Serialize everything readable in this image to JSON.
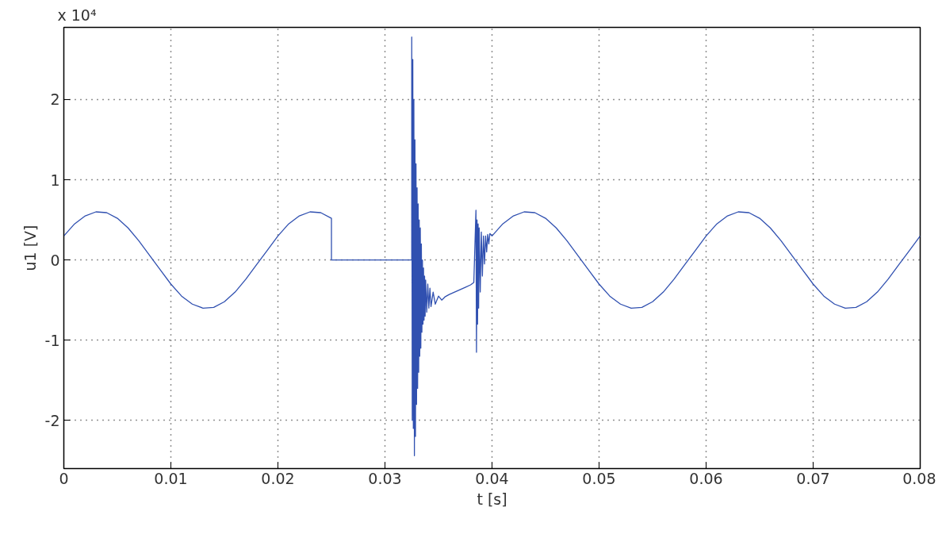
{
  "chart_data": {
    "type": "line",
    "xlabel": "t [s]",
    "ylabel": "u1 [V]",
    "annotations": [
      "x 10⁴"
    ],
    "x": [
      0,
      0.001,
      0.002,
      0.003,
      0.004,
      0.005,
      0.006,
      0.007,
      0.008,
      0.009,
      0.01,
      0.011,
      0.012,
      0.013,
      0.014,
      0.015,
      0.016,
      0.017,
      0.018,
      0.019,
      0.02,
      0.021,
      0.022,
      0.023,
      0.024,
      0.025,
      0.025,
      0.0325,
      0.0325,
      0.03255,
      0.0326,
      0.03265,
      0.0327,
      0.03275,
      0.0328,
      0.03285,
      0.0329,
      0.03295,
      0.033,
      0.03305,
      0.0331,
      0.03315,
      0.0332,
      0.03325,
      0.0333,
      0.03335,
      0.0334,
      0.03345,
      0.0335,
      0.03355,
      0.0336,
      0.03365,
      0.0337,
      0.03375,
      0.0338,
      0.0339,
      0.034,
      0.0341,
      0.0342,
      0.0343,
      0.0345,
      0.0347,
      0.035,
      0.0353,
      0.0356,
      0.036,
      0.0365,
      0.037,
      0.0375,
      0.038,
      0.0383,
      0.0385,
      0.03855,
      0.0386,
      0.03865,
      0.0387,
      0.03875,
      0.0388,
      0.0389,
      0.039,
      0.0391,
      0.0392,
      0.0393,
      0.0394,
      0.0395,
      0.0396,
      0.0397,
      0.0398,
      0.04,
      0.041,
      0.042,
      0.043,
      0.044,
      0.045,
      0.046,
      0.047,
      0.048,
      0.049,
      0.05,
      0.051,
      0.052,
      0.053,
      0.054,
      0.055,
      0.056,
      0.057,
      0.058,
      0.059,
      0.06,
      0.061,
      0.062,
      0.063,
      0.064,
      0.065,
      0.066,
      0.067,
      0.068,
      0.069,
      0.07,
      0.071,
      0.072,
      0.073,
      0.074,
      0.075,
      0.076,
      0.077,
      0.078,
      0.079,
      0.08
    ],
    "series": [
      {
        "color": "#3050b0",
        "values": [
          0.3,
          0.45,
          0.55,
          0.6,
          0.59,
          0.52,
          0.4,
          0.24,
          0.06,
          -0.12,
          -0.3,
          -0.45,
          -0.55,
          -0.6,
          -0.59,
          -0.52,
          -0.4,
          -0.24,
          -0.06,
          0.12,
          0.3,
          0.45,
          0.55,
          0.6,
          0.59,
          0.52,
          0,
          0,
          2.78,
          -2.0,
          2.5,
          -2.1,
          2.0,
          -2.44,
          1.5,
          -2.2,
          1.2,
          -1.8,
          0.9,
          -1.6,
          0.7,
          -1.4,
          0.5,
          -1.2,
          0.4,
          -1.1,
          0.2,
          -0.9,
          0,
          -0.8,
          -0.1,
          -0.75,
          -0.2,
          -0.7,
          -0.25,
          -0.65,
          -0.3,
          -0.6,
          -0.35,
          -0.58,
          -0.4,
          -0.55,
          -0.45,
          -0.5,
          -0.46,
          -0.43,
          -0.4,
          -0.37,
          -0.34,
          -0.31,
          -0.28,
          0.62,
          -1.15,
          0.5,
          -0.8,
          0.45,
          -0.6,
          0.4,
          -0.4,
          0.35,
          -0.2,
          0.3,
          -0.05,
          0.3,
          0.1,
          0.32,
          0.2,
          0.33,
          0.3,
          0.45,
          0.55,
          0.6,
          0.59,
          0.52,
          0.4,
          0.24,
          0.06,
          -0.12,
          -0.3,
          -0.45,
          -0.55,
          -0.6,
          -0.59,
          -0.52,
          -0.4,
          -0.24,
          -0.06,
          0.12,
          0.3,
          0.45,
          0.55,
          0.6,
          0.59,
          0.52,
          0.4,
          0.24,
          0.06,
          -0.12,
          -0.3,
          -0.45,
          -0.55,
          -0.6,
          -0.59,
          -0.52,
          -0.4,
          -0.24,
          -0.06,
          0.12,
          0.3
        ]
      }
    ],
    "xlim": [
      0,
      0.08
    ],
    "ylim": [
      -2.6,
      2.9
    ],
    "xticks": [
      0,
      0.01,
      0.02,
      0.03,
      0.04,
      0.05,
      0.06,
      0.07,
      0.08
    ],
    "yticks": [
      -2,
      -1,
      0,
      1,
      2
    ],
    "grid": true,
    "line_style": "solid"
  }
}
